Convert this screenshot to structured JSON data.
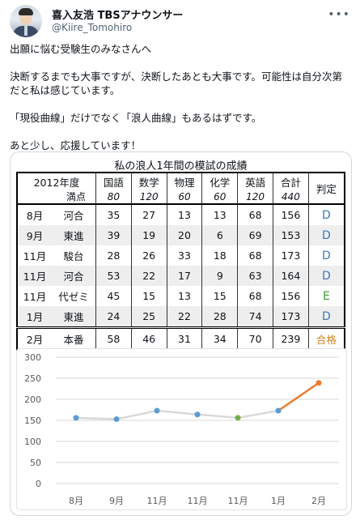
{
  "tweet": {
    "display_name": "喜入友浩 TBSアナウンサー",
    "handle": "@Kiire_Tomohiro",
    "more_icon": "ellipsis-icon",
    "paragraphs": [
      "出願に悩む受験生のみなさんへ",
      "決断するまでも大事ですが、決断したあとも大事です。可能性は自分次第だと私は感じています。",
      "「現役曲線」だけでなく「浪人曲線」もあるはずです。",
      "あと少し、応援しています！"
    ]
  },
  "table": {
    "title": "私の浪人1年間の模試の成績",
    "corner_top": "2012年度",
    "corner_bottom": "満点",
    "columns": [
      "国語",
      "数学",
      "物理",
      "化学",
      "英語",
      "合計",
      "判定"
    ],
    "max_scores": [
      "80",
      "120",
      "60",
      "60",
      "120",
      "440"
    ],
    "rows": [
      {
        "month": "8月",
        "org": "河合",
        "scores": [
          "35",
          "27",
          "13",
          "13",
          "68",
          "156"
        ],
        "judgement": "D"
      },
      {
        "month": "9月",
        "org": "東進",
        "scores": [
          "39",
          "19",
          "20",
          "6",
          "69",
          "153"
        ],
        "judgement": "D"
      },
      {
        "month": "11月",
        "org": "駿台",
        "scores": [
          "28",
          "26",
          "33",
          "18",
          "68",
          "173"
        ],
        "judgement": "D"
      },
      {
        "month": "11月",
        "org": "河合",
        "scores": [
          "53",
          "22",
          "17",
          "9",
          "63",
          "164"
        ],
        "judgement": "D"
      },
      {
        "month": "11月",
        "org": "代ゼミ",
        "scores": [
          "45",
          "15",
          "13",
          "15",
          "68",
          "156"
        ],
        "judgement": "E"
      },
      {
        "month": "1月",
        "org": "東進",
        "scores": [
          "24",
          "25",
          "22",
          "28",
          "74",
          "173"
        ],
        "judgement": "D"
      }
    ],
    "final": {
      "month": "2月",
      "org": "本番",
      "scores": [
        "58",
        "46",
        "31",
        "34",
        "70",
        "239"
      ],
      "judgement": "合格"
    }
  },
  "chart_data": {
    "type": "line",
    "categories": [
      "8月",
      "9月",
      "11月",
      "11月",
      "11月",
      "1月",
      "2月"
    ],
    "values": [
      156,
      153,
      173,
      164,
      156,
      173,
      239
    ],
    "ylim": [
      0,
      300
    ],
    "yticks": [
      0,
      50,
      100,
      150,
      200,
      250,
      300
    ],
    "grid": true,
    "colors": {
      "line": "#d9d9d9",
      "point": "#5b9bd5",
      "highlight_point": "#70ad47",
      "final": "#ed7d31",
      "grid": "#d9d9d9"
    },
    "highlight_index": 4
  }
}
